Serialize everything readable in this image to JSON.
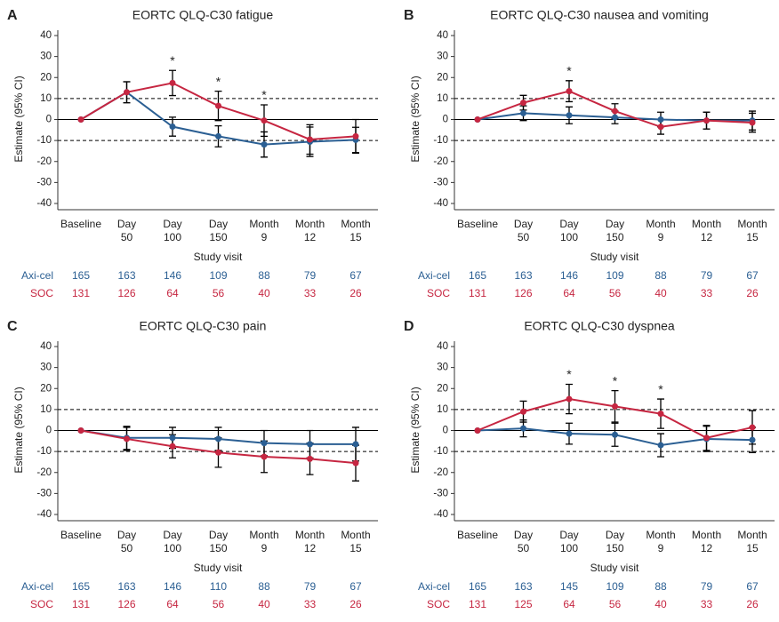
{
  "chart_data": [
    {
      "type": "line",
      "label": "A",
      "title": "EORTC QLQ-C30 fatigue",
      "ylabel": "Estimate (95% CI)",
      "xlabel": "Study visit",
      "categories": [
        [
          "Baseline"
        ],
        [
          "Day",
          "50"
        ],
        [
          "Day",
          "100"
        ],
        [
          "Day",
          "150"
        ],
        [
          "Month",
          "9"
        ],
        [
          "Month",
          "12"
        ],
        [
          "Month",
          "15"
        ]
      ],
      "ylim": [
        -40,
        40
      ],
      "yticks": [
        -40,
        -30,
        -20,
        -10,
        0,
        10,
        20,
        30,
        40
      ],
      "reference_lines": [
        10,
        -10
      ],
      "series": [
        {
          "name": "Axi-cel",
          "color": "#2b5f93",
          "values": [
            0,
            13,
            -3.4,
            -8,
            -11.9,
            -10.6,
            -9.7
          ],
          "errors": [
            0,
            5,
            4.5,
            5,
            6,
            7,
            6
          ],
          "at_risk": [
            165,
            163,
            146,
            109,
            88,
            79,
            67
          ]
        },
        {
          "name": "SOC",
          "color": "#c62641",
          "values": [
            0,
            13,
            17.4,
            6.5,
            -0.5,
            -9.5,
            -8
          ],
          "errors": [
            0,
            5,
            6,
            7,
            7.5,
            7,
            8
          ],
          "at_risk": [
            131,
            126,
            64,
            56,
            40,
            33,
            26
          ]
        }
      ],
      "annotations": [
        {
          "text": "*",
          "at": 2
        },
        {
          "text": "*",
          "at": 3
        },
        {
          "text": "*",
          "at": 4
        }
      ]
    },
    {
      "type": "line",
      "label": "B",
      "title": "EORTC QLQ-C30 nausea and vomiting",
      "ylabel": "Estimate (95% CI)",
      "xlabel": "Study visit",
      "categories": [
        [
          "Baseline"
        ],
        [
          "Day",
          "50"
        ],
        [
          "Day",
          "100"
        ],
        [
          "Day",
          "150"
        ],
        [
          "Month",
          "9"
        ],
        [
          "Month",
          "12"
        ],
        [
          "Month",
          "15"
        ]
      ],
      "ylim": [
        -40,
        40
      ],
      "yticks": [
        -40,
        -30,
        -20,
        -10,
        0,
        10,
        20,
        30,
        40
      ],
      "reference_lines": [
        10,
        -10
      ],
      "series": [
        {
          "name": "Axi-cel",
          "color": "#2b5f93",
          "values": [
            0,
            3,
            2,
            1,
            0,
            -0.5,
            -0.5
          ],
          "errors": [
            0,
            3.5,
            4,
            3,
            3.5,
            4,
            4.5
          ],
          "at_risk": [
            165,
            163,
            146,
            109,
            88,
            79,
            67
          ]
        },
        {
          "name": "SOC",
          "color": "#c62641",
          "values": [
            0,
            8,
            13.5,
            4,
            -3.5,
            -0.5,
            -1.5
          ],
          "errors": [
            0,
            3.5,
            5,
            3.5,
            3.5,
            4,
            4.5
          ],
          "at_risk": [
            131,
            126,
            64,
            56,
            40,
            33,
            26
          ]
        }
      ],
      "annotations": [
        {
          "text": "*",
          "at": 2
        }
      ]
    },
    {
      "type": "line",
      "label": "C",
      "title": "EORTC QLQ-C30 pain",
      "ylabel": "Estimate (95% CI)",
      "xlabel": "Study visit",
      "categories": [
        [
          "Baseline"
        ],
        [
          "Day",
          "50"
        ],
        [
          "Day",
          "100"
        ],
        [
          "Day",
          "150"
        ],
        [
          "Month",
          "9"
        ],
        [
          "Month",
          "12"
        ],
        [
          "Month",
          "15"
        ]
      ],
      "ylim": [
        -40,
        40
      ],
      "yticks": [
        -40,
        -30,
        -20,
        -10,
        0,
        10,
        20,
        30,
        40
      ],
      "reference_lines": [
        10,
        -10
      ],
      "series": [
        {
          "name": "Axi-cel",
          "color": "#2b5f93",
          "values": [
            0,
            -3.5,
            -3.5,
            -4,
            -6,
            -6.5,
            -6.5
          ],
          "errors": [
            0,
            5.5,
            5,
            5.5,
            6,
            6.5,
            8
          ],
          "at_risk": [
            165,
            163,
            146,
            110,
            88,
            79,
            67
          ]
        },
        {
          "name": "SOC",
          "color": "#c62641",
          "values": [
            0,
            -4,
            -7.5,
            -10.5,
            -12.5,
            -13.5,
            -15.5
          ],
          "errors": [
            0,
            5.5,
            5.5,
            7,
            7.5,
            7.5,
            8.5
          ],
          "at_risk": [
            131,
            126,
            64,
            56,
            40,
            33,
            26
          ]
        }
      ],
      "annotations": []
    },
    {
      "type": "line",
      "label": "D",
      "title": "EORTC QLQ-C30 dyspnea",
      "ylabel": "Estimate (95% CI)",
      "xlabel": "Study visit",
      "categories": [
        [
          "Baseline"
        ],
        [
          "Day",
          "50"
        ],
        [
          "Day",
          "100"
        ],
        [
          "Day",
          "150"
        ],
        [
          "Month",
          "9"
        ],
        [
          "Month",
          "12"
        ],
        [
          "Month",
          "15"
        ]
      ],
      "ylim": [
        -40,
        40
      ],
      "yticks": [
        -40,
        -30,
        -20,
        -10,
        0,
        10,
        20,
        30,
        40
      ],
      "reference_lines": [
        10,
        -10
      ],
      "series": [
        {
          "name": "Axi-cel",
          "color": "#2b5f93",
          "values": [
            0,
            1,
            -1.5,
            -2,
            -7,
            -4,
            -4.5
          ],
          "errors": [
            0,
            4,
            5,
            5.5,
            5.5,
            6,
            6
          ],
          "at_risk": [
            165,
            163,
            145,
            109,
            88,
            79,
            67
          ]
        },
        {
          "name": "SOC",
          "color": "#c62641",
          "values": [
            0,
            9,
            15,
            11.5,
            8,
            -3.5,
            1.5
          ],
          "errors": [
            0,
            5,
            7,
            7.5,
            7,
            6,
            8
          ],
          "at_risk": [
            131,
            125,
            64,
            56,
            40,
            33,
            26
          ]
        }
      ],
      "annotations": [
        {
          "text": "*",
          "at": 2
        },
        {
          "text": "*",
          "at": 3
        },
        {
          "text": "*",
          "at": 4
        }
      ]
    }
  ]
}
